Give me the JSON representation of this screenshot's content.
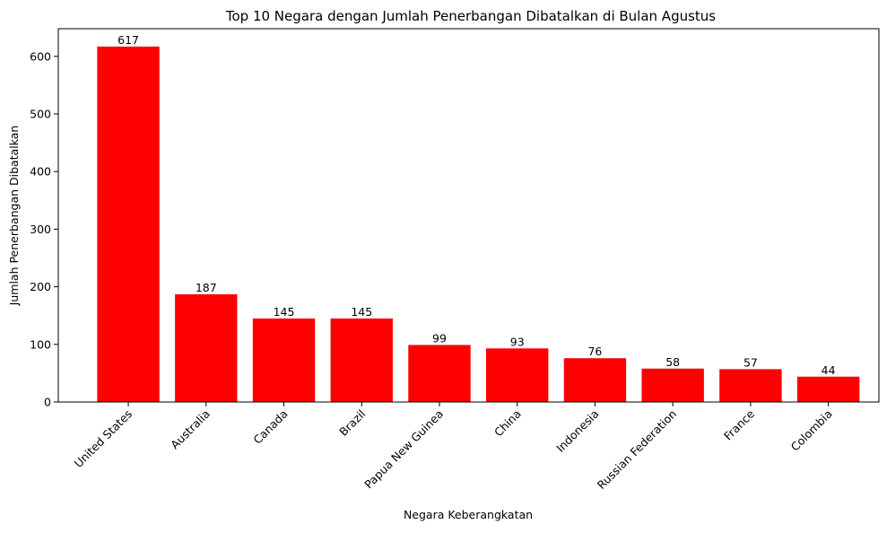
{
  "chart_data": {
    "type": "bar",
    "title": "Top 10 Negara dengan Jumlah Penerbangan Dibatalkan di Bulan Agustus",
    "xlabel": "Negara Keberangkatan",
    "ylabel": "Jumlah Penerbangan Dibatalkan",
    "categories": [
      "United States",
      "Australia",
      "Canada",
      "Brazil",
      "Papua New Guinea",
      "China",
      "Indonesia",
      "Russian Federation",
      "France",
      "Colombia"
    ],
    "values": [
      617,
      187,
      145,
      145,
      99,
      93,
      76,
      58,
      57,
      44
    ],
    "data_labels": [
      "617",
      "187",
      "145",
      "145",
      "99",
      "93",
      "76",
      "58",
      "57",
      "44"
    ],
    "ylim": [
      0,
      648
    ],
    "yticks": [
      0,
      100,
      200,
      300,
      400,
      500,
      600
    ],
    "ytick_labels": [
      "0",
      "100",
      "200",
      "300",
      "400",
      "500",
      "600"
    ],
    "xtick_rotation_deg": 45,
    "bar_color": "#ff0000",
    "grid": false,
    "legend": "none"
  }
}
